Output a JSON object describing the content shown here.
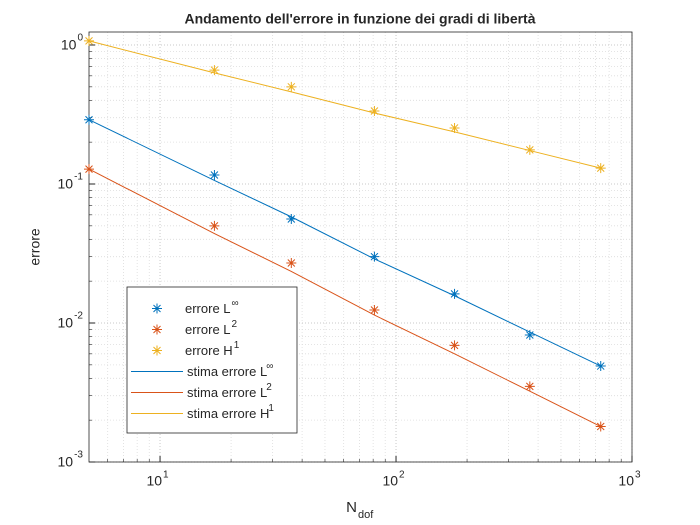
{
  "chart_data": {
    "type": "line",
    "title": "Andamento dell'errore in funzione dei gradi di libertà",
    "xlabel": "N",
    "xlabel_sub": "dof",
    "ylabel": "errore",
    "x": [
      5,
      17,
      36,
      81,
      177,
      369,
      737
    ],
    "xlim": [
      5,
      1000
    ],
    "ylim": [
      0.001,
      1.24
    ],
    "log_x": true,
    "log_y": true,
    "xticks": [
      {
        "value": 10,
        "label": "10",
        "exponent": "1"
      },
      {
        "value": 100,
        "label": "10",
        "exponent": "2"
      },
      {
        "value": 1000,
        "label": "10",
        "exponent": "3"
      }
    ],
    "yticks": [
      {
        "value": 0.001,
        "label": "10",
        "exponent": "-3"
      },
      {
        "value": 0.01,
        "label": "10",
        "exponent": "-2"
      },
      {
        "value": 0.1,
        "label": "10",
        "exponent": "-1"
      },
      {
        "value": 1,
        "label": "10",
        "exponent": "0"
      }
    ],
    "grid": true,
    "minor_grid": true,
    "legend": "southwest",
    "series": [
      {
        "name": "errore L",
        "name_sup": "∞",
        "style": "markers",
        "color": "#0072BD",
        "values": [
          0.29,
          0.116,
          0.056,
          0.03,
          0.0162,
          0.0082,
          0.0049
        ]
      },
      {
        "name": "errore L",
        "name_sup": "2",
        "style": "markers",
        "color": "#D95319",
        "values": [
          0.128,
          0.05,
          0.027,
          0.0124,
          0.0069,
          0.0035,
          0.0018
        ]
      },
      {
        "name": "errore H",
        "name_sup": "1",
        "style": "markers",
        "color": "#EDB120",
        "values": [
          1.07,
          0.66,
          0.5,
          0.335,
          0.253,
          0.176,
          0.13
        ]
      },
      {
        "name": "stima errore L",
        "name_sup": "∞",
        "style": "line",
        "color": "#0072BD",
        "values": [
          0.29,
          0.106,
          0.058,
          0.0289,
          0.0157,
          0.0086,
          0.0049
        ]
      },
      {
        "name": "stima errore L",
        "name_sup": "2",
        "style": "line",
        "color": "#D95319",
        "values": [
          0.128,
          0.044,
          0.0235,
          0.0114,
          0.006,
          0.00323,
          0.0018
        ]
      },
      {
        "name": "stima errore H",
        "name_sup": "1",
        "style": "line",
        "color": "#EDB120",
        "values": [
          1.07,
          0.63,
          0.46,
          0.324,
          0.237,
          0.174,
          0.13
        ]
      }
    ]
  }
}
